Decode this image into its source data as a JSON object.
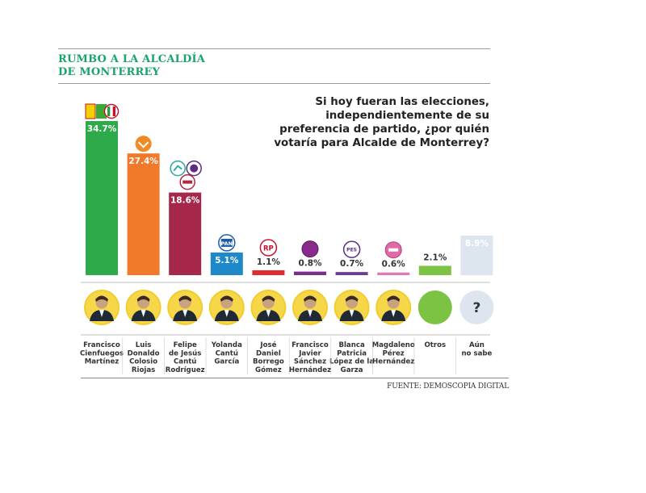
{
  "title": {
    "line1": "RUMBO A LA ALCALDÍA",
    "line2": "DE MONTERREY"
  },
  "question": "Si hoy fueran las elecciones, independientemente de su preferencia de partido, ¿por quién votaría para Alcalde de Monterrey?",
  "source": "FUENTE: DEMOSCOPIA DIGITAL",
  "colors": {
    "green": "#2eaa4a",
    "orange": "#f07a2a",
    "maroon": "#a5284b",
    "blue": "#1e88c8",
    "red": "#e02b30",
    "purple": "#7d2d8a",
    "violet": "#6e3a96",
    "pink": "#e07ab8",
    "lightgreen": "#7cc243",
    "lightgray": "#dde6ee",
    "circle_ring": "#f1cc2d",
    "circle_fill": "#f7d74a"
  },
  "chart_data": {
    "type": "bar",
    "categories": [
      "Francisco Cienfuegos Martínez",
      "Luis Donaldo Colosio Riojas",
      "Felipe de Jesús Cantú Rodríguez",
      "Yolanda Cantú García",
      "José Daniel Borrego Gómez",
      "Francisco Javier Sánchez Hernández",
      "Blanca Patricia López de la Garza",
      "Magdaleno Pérez Hernández",
      "Otros",
      "Aún no sabe"
    ],
    "values": [
      34.7,
      27.4,
      18.6,
      5.1,
      1.1,
      0.8,
      0.7,
      0.6,
      2.1,
      8.9
    ],
    "value_labels": [
      "34.7%",
      "27.4%",
      "18.6%",
      "5.1%",
      "1.1%",
      "0.8%",
      "0.7%",
      "0.6%",
      "2.1%",
      "8.9%"
    ],
    "label_lines": [
      [
        "Francisco",
        "Cienfuegos",
        "Martínez"
      ],
      [
        "Luis",
        "Donaldo",
        "Colosio",
        "Riojas"
      ],
      [
        "Felipe",
        "de Jesús",
        "Cantú",
        "Rodríguez"
      ],
      [
        "Yolanda",
        "Cantú",
        "García"
      ],
      [
        "José",
        "Daniel",
        "Borrego",
        "Gómez"
      ],
      [
        "Francisco",
        "Javier",
        "Sánchez",
        "Hernández"
      ],
      [
        "Blanca",
        "Patricia",
        "López de la",
        "Garza"
      ],
      [
        "Magdaleno",
        "Pérez",
        "Hernández"
      ],
      [
        "Otros"
      ],
      [
        "Aún",
        "no sabe"
      ]
    ],
    "bar_colors": [
      "green",
      "orange",
      "maroon",
      "blue",
      "red",
      "purple",
      "violet",
      "pink",
      "lightgreen",
      "lightgray"
    ],
    "party_logos": [
      [
        "PT-PVEM",
        "PRI"
      ],
      [
        "MC"
      ],
      [
        "NA",
        "PES",
        "MORENA"
      ],
      [
        "PAN"
      ],
      [
        "RP"
      ],
      [
        "PURPLE"
      ],
      [
        "PES"
      ],
      [
        "RSP"
      ],
      [],
      []
    ],
    "logo_texts": {
      "PAN": "PAN",
      "RP": "RP",
      "PES": "PES"
    },
    "unknown_mark": "?",
    "ylim": [
      0,
      36
    ],
    "grid": false,
    "legend": "none",
    "xlabel": "",
    "ylabel": ""
  }
}
